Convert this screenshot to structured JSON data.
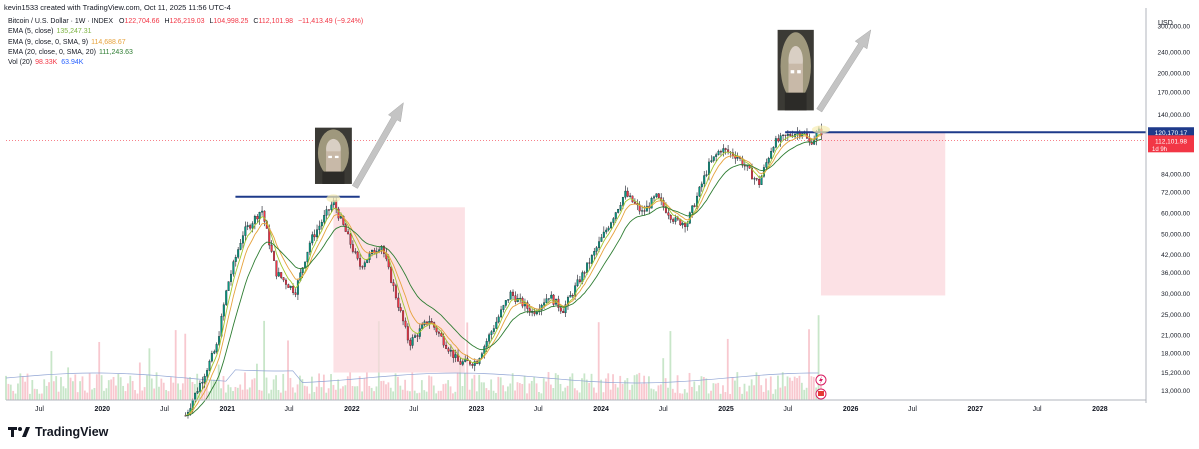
{
  "attribution": "kevin1533 created with TradingView.com, Oct 11, 2025 11:56 UTC-4",
  "legend": {
    "symbol": "Bitcoin / U.S. Dollar · 1W · INDEX",
    "open_label": "O",
    "open": "122,704.66",
    "high_label": "H",
    "high": "126,219.03",
    "low_label": "L",
    "low": "104,998.25",
    "close_label": "C",
    "close": "112,101.98",
    "change": "−11,413.49 (−9.24%)",
    "ema1_label": "EMA (5, close)",
    "ema1_value": "135,247.31",
    "ema2_label": "EMA (9, close, 0, SMA, 9)",
    "ema2_value": "114,688.67",
    "ema3_label": "EMA (20, close, 0, SMA, 20)",
    "ema3_value": "111,243.63",
    "vol_label": "Vol (20)",
    "vol_value1": "98.33K",
    "vol_value2": "63.94K"
  },
  "logo_text": "TradingView",
  "colors": {
    "up": "#089981",
    "down": "#f23645",
    "ema_fast": "#a3c72f",
    "ema_mid": "#e6a23c",
    "ema_slow": "#2e7d32",
    "resistance": "#1e3a8a",
    "zone": "#fbd7dc",
    "arrow": "#c4c4c4",
    "price_tag": "#f23645",
    "level_tag": "#1e3a8a"
  },
  "icons": [
    "figure-image",
    "arrow-up-icon",
    "lightning-icon",
    "flag-icon",
    "tradingview-logo"
  ],
  "chart_data": {
    "type": "candlestick",
    "timeframe": "1W",
    "y_scale": "log",
    "currency_label": "USD",
    "x_tick_labels": [
      "Jul",
      "2020",
      "Jul",
      "2021",
      "Jul",
      "2022",
      "Jul",
      "2023",
      "Jul",
      "2024",
      "Jul",
      "2025",
      "Jul",
      "2026",
      "Jul",
      "2027",
      "Jul",
      "2028"
    ],
    "x_tick_dates": [
      "2019-07-01",
      "2020-01-01",
      "2020-07-01",
      "2021-01-01",
      "2021-07-01",
      "2022-01-01",
      "2022-07-01",
      "2023-01-01",
      "2023-07-01",
      "2024-01-01",
      "2024-07-01",
      "2025-01-01",
      "2025-07-01",
      "2026-01-01",
      "2026-07-01",
      "2027-01-01",
      "2027-07-01",
      "2028-01-01"
    ],
    "y_tick_labels": [
      "300,000.00",
      "240,000.00",
      "200,000.00",
      "170,000.00",
      "140,000.00",
      "84,000.00",
      "72,000.00",
      "60,000.00",
      "50,000.00",
      "42,000.00",
      "36,000.00",
      "30,000.00",
      "25,000.00",
      "21,000.00",
      "18,000.00",
      "15,200.00",
      "13,000.00"
    ],
    "y_tick_values": [
      300000,
      240000,
      200000,
      170000,
      140000,
      84000,
      72000,
      60000,
      50000,
      42000,
      36000,
      30000,
      25000,
      21000,
      18000,
      15200,
      13000
    ],
    "price_path": [
      {
        "date": "2020-09-01",
        "price": 10500
      },
      {
        "date": "2020-12-01",
        "price": 19000
      },
      {
        "date": "2021-01-01",
        "price": 32000
      },
      {
        "date": "2021-02-15",
        "price": 50000
      },
      {
        "date": "2021-04-12",
        "price": 62000
      },
      {
        "date": "2021-05-24",
        "price": 36000
      },
      {
        "date": "2021-07-19",
        "price": 30500
      },
      {
        "date": "2021-09-01",
        "price": 47000
      },
      {
        "date": "2021-11-08",
        "price": 66000
      },
      {
        "date": "2022-01-24",
        "price": 38000
      },
      {
        "date": "2022-03-28",
        "price": 46000
      },
      {
        "date": "2022-06-18",
        "price": 19500
      },
      {
        "date": "2022-08-15",
        "price": 24000
      },
      {
        "date": "2022-11-10",
        "price": 16500
      },
      {
        "date": "2023-01-01",
        "price": 16700
      },
      {
        "date": "2023-04-10",
        "price": 30000
      },
      {
        "date": "2023-06-15",
        "price": 25500
      },
      {
        "date": "2023-08-01",
        "price": 29500
      },
      {
        "date": "2023-09-11",
        "price": 26000
      },
      {
        "date": "2023-12-01",
        "price": 40000
      },
      {
        "date": "2024-03-11",
        "price": 71000
      },
      {
        "date": "2024-05-01",
        "price": 60000
      },
      {
        "date": "2024-06-10",
        "price": 69000
      },
      {
        "date": "2024-08-05",
        "price": 56000
      },
      {
        "date": "2024-09-09",
        "price": 55000
      },
      {
        "date": "2024-11-11",
        "price": 90000
      },
      {
        "date": "2024-12-16",
        "price": 104000
      },
      {
        "date": "2025-02-03",
        "price": 98000
      },
      {
        "date": "2025-04-07",
        "price": 77000
      },
      {
        "date": "2025-05-19",
        "price": 109000
      },
      {
        "date": "2025-07-14",
        "price": 119000
      },
      {
        "date": "2025-08-14",
        "price": 121000
      },
      {
        "date": "2025-09-01",
        "price": 109000
      },
      {
        "date": "2025-10-06",
        "price": 123000
      },
      {
        "date": "2025-10-11",
        "price": 112101.98
      }
    ],
    "horizontal_levels": [
      {
        "price": 69000,
        "from": "2021-01-25",
        "to": "2022-01-24",
        "color": "#1e3a8a"
      },
      {
        "price": 120170.17,
        "from": "2025-06-23",
        "to": "2028-06-01",
        "color": "#1e3a8a",
        "label": "120,170.17"
      }
    ],
    "shaded_zones": [
      {
        "from": "2021-11-08",
        "to": "2022-11-28",
        "top": 63000,
        "bottom": 15200
      },
      {
        "from": "2025-10-06",
        "to": "2026-10-05",
        "top": 120170,
        "bottom": 29500
      }
    ],
    "current_price": {
      "label": "112,101.98",
      "value": 112101.98,
      "sub_label": "1d 9h"
    },
    "annotations": [
      {
        "type": "image",
        "from": "2021-09-15",
        "to": "2022-01-01",
        "top": 125000,
        "bottom": 77000
      },
      {
        "type": "arrow",
        "from_date": "2022-01-10",
        "from_price": 75000,
        "to_date": "2022-06-01",
        "to_price": 155000
      },
      {
        "type": "image",
        "from": "2025-06-01",
        "to": "2025-09-15",
        "top": 290000,
        "bottom": 145000
      },
      {
        "type": "arrow",
        "from_date": "2025-10-01",
        "from_price": 145000,
        "to_date": "2026-03-01",
        "to_price": 290000
      }
    ]
  }
}
